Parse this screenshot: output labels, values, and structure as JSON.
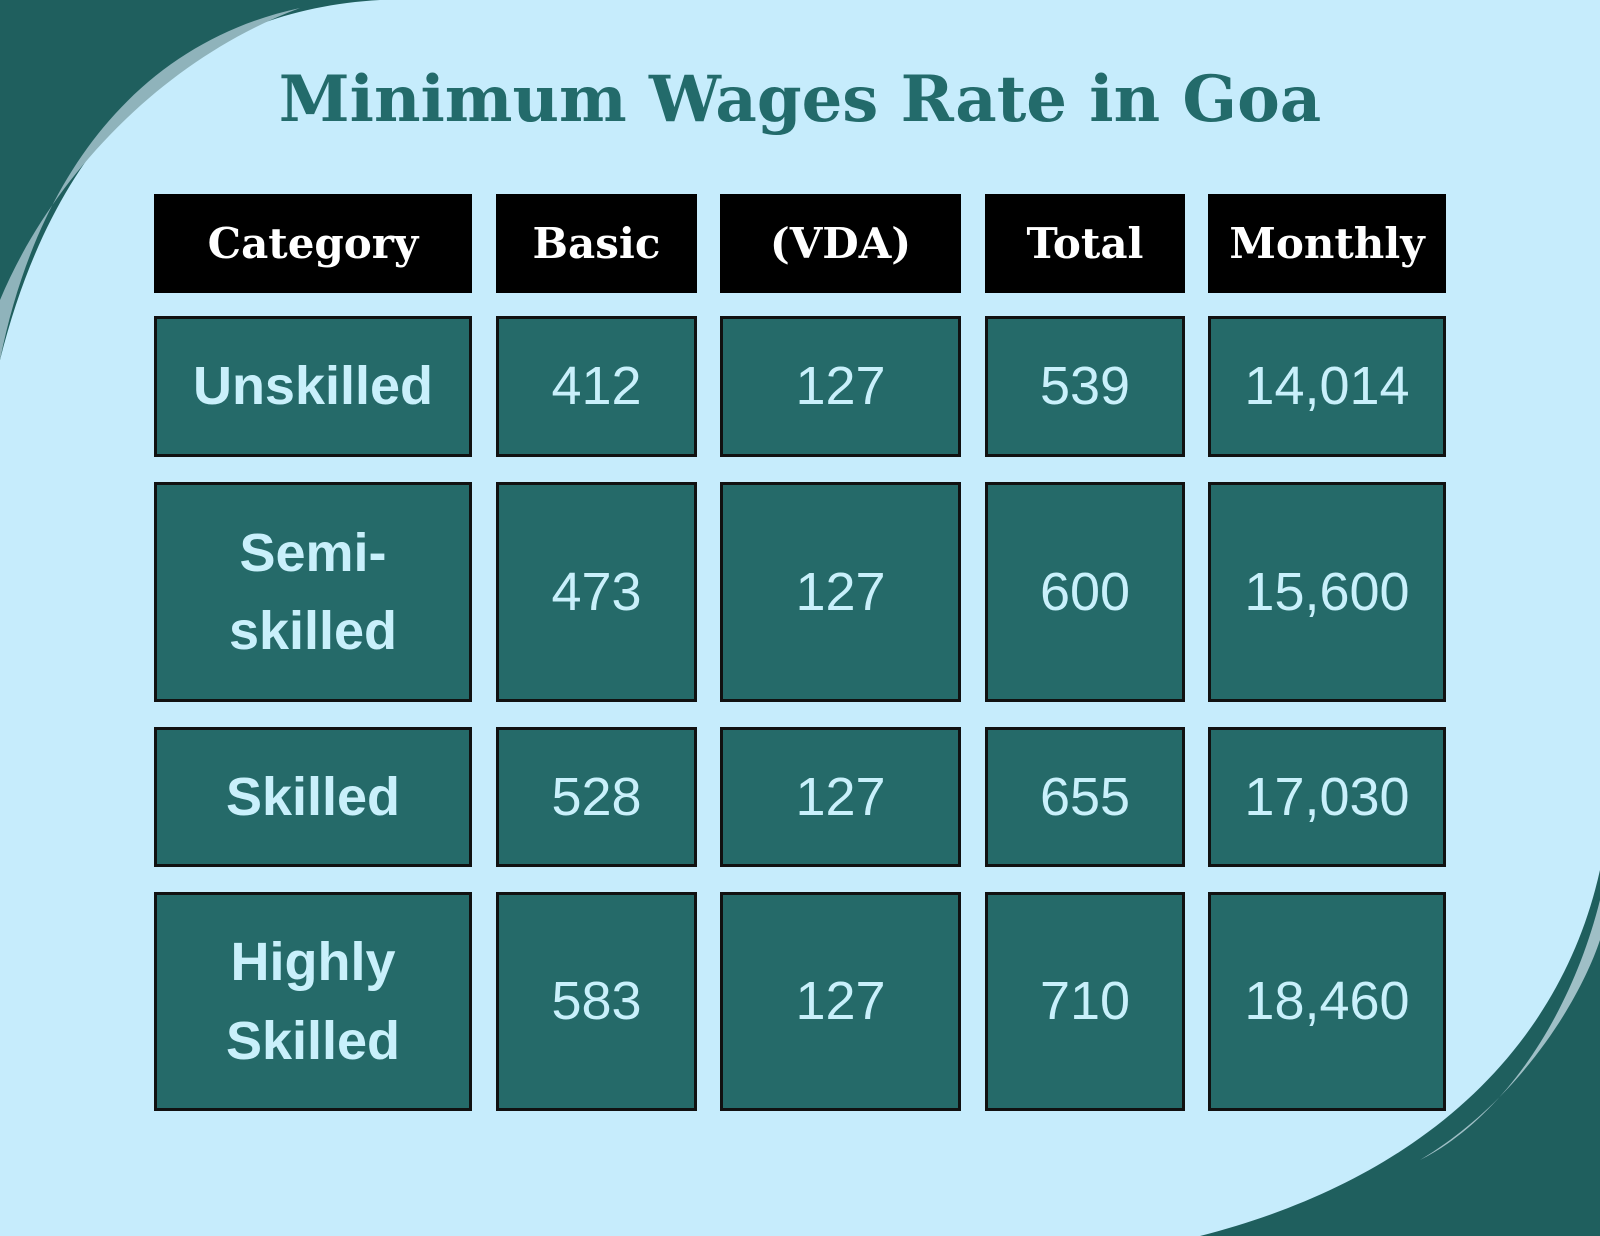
{
  "header": {
    "title": "Minimum Wages Rate in Goa"
  },
  "table": {
    "columns": [
      "Category",
      "Basic",
      "(VDA)",
      "Total",
      "Monthly"
    ],
    "rows": [
      [
        "Unskilled",
        "412",
        "127",
        "539",
        "14,014"
      ],
      [
        "Semi-skilled",
        "473",
        "127",
        "600",
        "15,600"
      ],
      [
        "Skilled",
        "528",
        "127",
        "655",
        "17,030"
      ],
      [
        "Highly Skilled",
        "583",
        "127",
        "710",
        "18,460"
      ]
    ]
  }
}
